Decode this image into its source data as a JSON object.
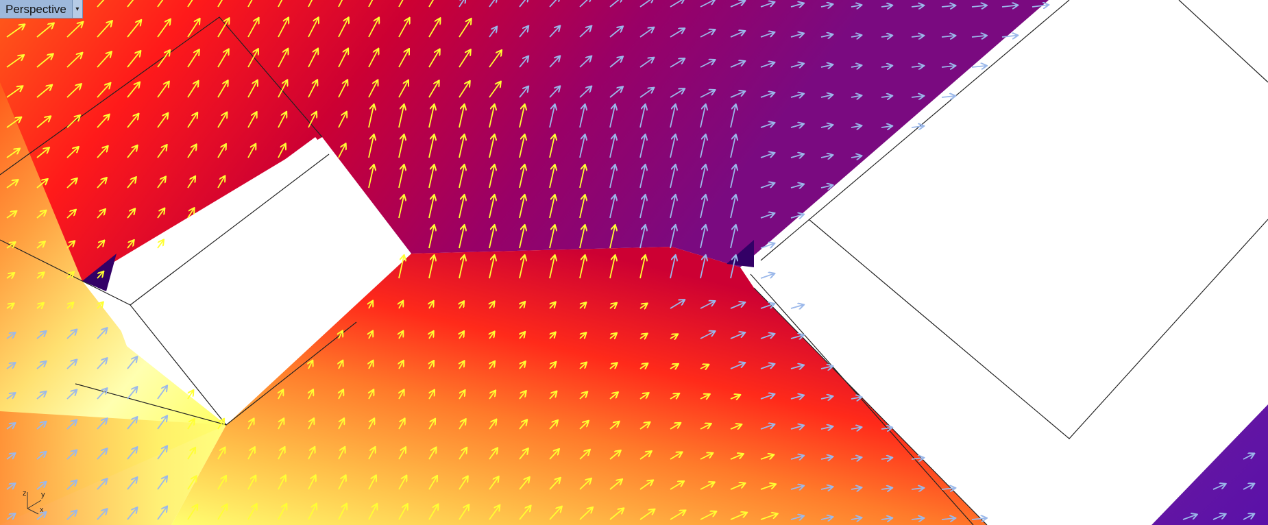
{
  "viewport": {
    "name": "Perspective",
    "menu_icon": "dropdown-arrow-icon"
  },
  "axis_widget": {
    "labels": [
      "z",
      "y",
      "x"
    ]
  },
  "colors": {
    "hot_yellow": "#ffff66",
    "orange": "#ff9933",
    "red": "#ff1a1a",
    "crimson": "#cc0033",
    "magenta": "#990066",
    "purple": "#660099",
    "deep_purple": "#330066",
    "arrow_yellow": "#ffff33",
    "arrow_blue": "#8fb0e6",
    "frame_line": "#222222"
  }
}
